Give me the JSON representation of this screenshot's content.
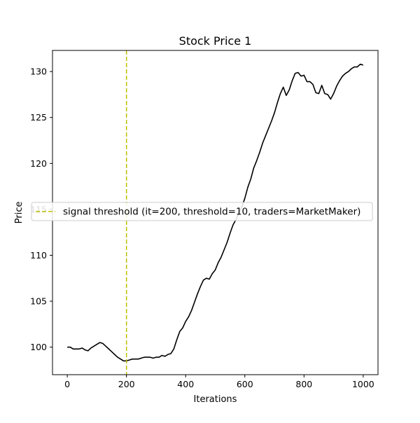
{
  "chart_data": {
    "type": "line",
    "title": "Stock Price 1",
    "xlabel": "Iterations",
    "ylabel": "Price",
    "xlim": [
      -50,
      1050
    ],
    "ylim": [
      97.0,
      132.3
    ],
    "xticks": [
      0,
      200,
      400,
      600,
      800,
      1000
    ],
    "yticks": [
      100,
      105,
      110,
      115,
      120,
      125,
      130
    ],
    "grid": false,
    "legend_position": "center-right",
    "series": [
      {
        "color": "#000000",
        "style": "solid",
        "x": [
          0,
          10,
          20,
          30,
          40,
          50,
          60,
          70,
          80,
          90,
          100,
          110,
          120,
          130,
          140,
          150,
          160,
          170,
          180,
          190,
          200,
          210,
          220,
          230,
          240,
          250,
          260,
          270,
          280,
          290,
          300,
          310,
          320,
          330,
          340,
          350,
          360,
          370,
          380,
          390,
          400,
          410,
          420,
          430,
          440,
          450,
          460,
          470,
          480,
          490,
          500,
          510,
          520,
          530,
          540,
          550,
          560,
          570,
          580,
          590,
          600,
          610,
          620,
          630,
          640,
          650,
          660,
          670,
          680,
          690,
          700,
          710,
          720,
          730,
          740,
          750,
          760,
          770,
          780,
          790,
          800,
          810,
          820,
          830,
          840,
          850,
          860,
          870,
          880,
          890,
          900,
          910,
          920,
          930,
          940,
          950,
          960,
          970,
          980,
          990,
          1000
        ],
        "values": [
          100.0,
          100.0,
          99.8,
          99.8,
          99.8,
          99.9,
          99.7,
          99.6,
          99.9,
          100.1,
          100.3,
          100.5,
          100.4,
          100.1,
          99.8,
          99.5,
          99.2,
          98.9,
          98.7,
          98.5,
          98.5,
          98.6,
          98.7,
          98.7,
          98.7,
          98.8,
          98.9,
          98.9,
          98.9,
          98.8,
          98.9,
          98.9,
          99.1,
          99.0,
          99.2,
          99.3,
          99.8,
          100.8,
          101.7,
          102.1,
          102.8,
          103.3,
          104.0,
          104.9,
          105.8,
          106.6,
          107.3,
          107.5,
          107.4,
          108.0,
          108.4,
          109.2,
          109.8,
          110.6,
          111.4,
          112.4,
          113.3,
          113.9,
          114.6,
          115.3,
          116.2,
          117.4,
          118.3,
          119.5,
          120.3,
          121.2,
          122.2,
          123.0,
          123.8,
          124.6,
          125.5,
          126.6,
          127.6,
          128.3,
          127.4,
          128.0,
          129.0,
          129.8,
          129.9,
          129.5,
          129.6,
          128.9,
          128.9,
          128.6,
          127.7,
          127.6,
          128.5,
          127.6,
          127.5,
          127.0,
          127.6,
          128.4,
          129.0,
          129.5,
          129.8,
          130.0,
          130.3,
          130.5,
          130.5,
          130.8,
          130.7
        ]
      },
      {
        "name": "signal threshold (it=200, threshold=10, traders=MarketMaker)",
        "color": "#bfbf00",
        "style": "dashed",
        "vertical_x": 200
      }
    ]
  }
}
